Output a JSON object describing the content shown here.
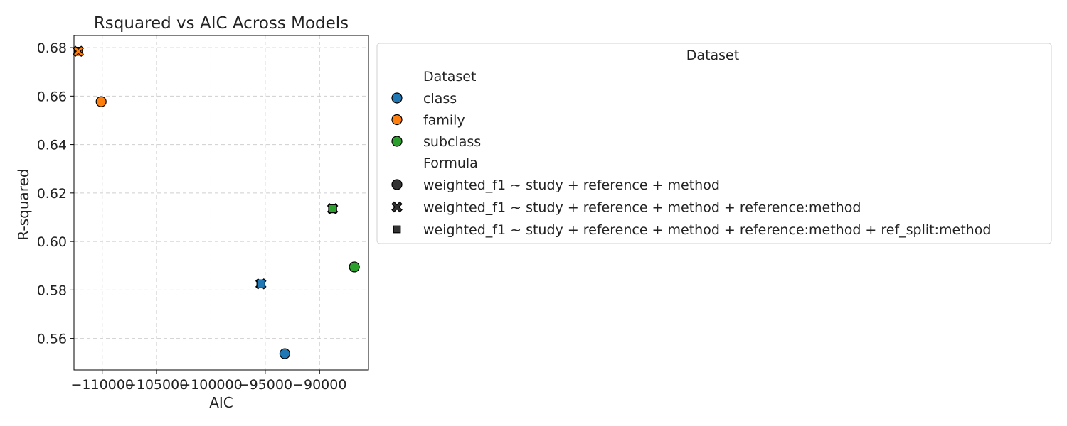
{
  "chart_data": {
    "type": "scatter",
    "title": "Rsquared vs AIC Across Models",
    "xlabel": "AIC",
    "ylabel": "R-squared",
    "xlim": [
      -112600,
      -85500
    ],
    "ylim": [
      0.547,
      0.685
    ],
    "xticks": [
      -110000,
      -105000,
      -100000,
      -95000,
      -90000
    ],
    "xtick_labels": [
      "−110000",
      "−105000",
      "−100000",
      "−95000",
      "−90000"
    ],
    "yticks": [
      0.56,
      0.58,
      0.6,
      0.62,
      0.64,
      0.66,
      0.68
    ],
    "ytick_labels": [
      "0.56",
      "0.58",
      "0.60",
      "0.62",
      "0.64",
      "0.66",
      "0.68"
    ],
    "grid": true,
    "legend": {
      "title": "Dataset",
      "placement": "outside-right",
      "hue_title": "Dataset",
      "style_title": "Formula",
      "hue_entries": [
        {
          "label": "class",
          "color": "#1f77b4"
        },
        {
          "label": "family",
          "color": "#ff7f0e"
        },
        {
          "label": "subclass",
          "color": "#2ca02c"
        }
      ],
      "style_entries": [
        {
          "label": "weighted_f1 ~ study + reference + method",
          "marker": "circle"
        },
        {
          "label": "weighted_f1 ~ study + reference + method + reference:method",
          "marker": "x"
        },
        {
          "label": "weighted_f1 ~ study + reference + method + reference:method + ref_split:method",
          "marker": "square"
        }
      ]
    },
    "points": [
      {
        "dataset": "family",
        "formula": "square",
        "x": -112200,
        "y": 0.6785
      },
      {
        "dataset": "family",
        "formula": "x",
        "x": -112200,
        "y": 0.6785
      },
      {
        "dataset": "family",
        "formula": "circle",
        "x": -110100,
        "y": 0.6577
      },
      {
        "dataset": "class",
        "formula": "x",
        "x": -95400,
        "y": 0.5825
      },
      {
        "dataset": "class",
        "formula": "square",
        "x": -95400,
        "y": 0.5825
      },
      {
        "dataset": "class",
        "formula": "circle",
        "x": -93200,
        "y": 0.5537
      },
      {
        "dataset": "subclass",
        "formula": "x",
        "x": -88800,
        "y": 0.6135
      },
      {
        "dataset": "subclass",
        "formula": "square",
        "x": -88800,
        "y": 0.6135
      },
      {
        "dataset": "subclass",
        "formula": "circle",
        "x": -86800,
        "y": 0.5895
      }
    ]
  }
}
